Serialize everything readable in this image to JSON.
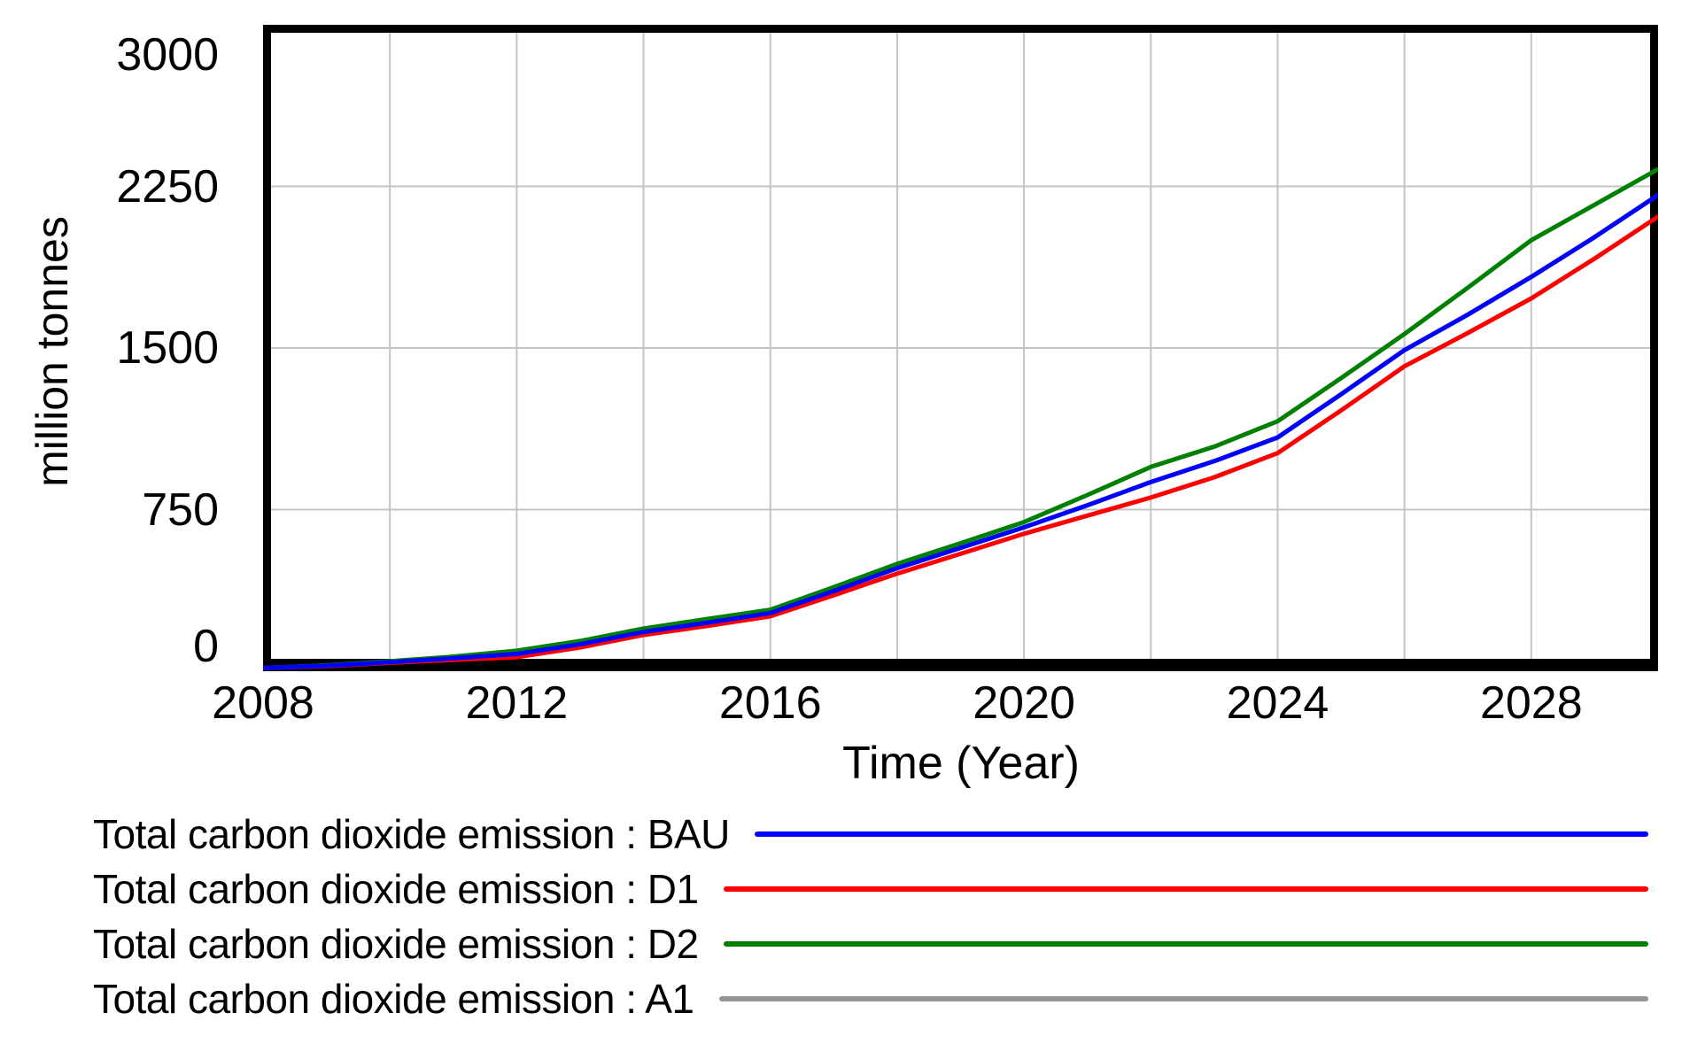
{
  "chart_data": {
    "type": "line",
    "title": "",
    "xlabel": "Time (Year)",
    "ylabel": "million tonnes",
    "xlim": [
      2008,
      2030
    ],
    "ylim": [
      0,
      3000
    ],
    "x_ticks": [
      2008,
      2012,
      2016,
      2020,
      2024,
      2028
    ],
    "y_ticks": [
      0,
      750,
      1500,
      2250,
      3000
    ],
    "x_gridlines": [
      2010,
      2012,
      2014,
      2016,
      2018,
      2020,
      2022,
      2024,
      2026,
      2028
    ],
    "y_gridlines": [
      750,
      1500,
      2250
    ],
    "grid": true,
    "legend_position": "bottom-left",
    "gridline_color": "#c4c4c4",
    "axis_color": "#000000",
    "x": [
      2008,
      2009,
      2010,
      2011,
      2012,
      2013,
      2014,
      2015,
      2016,
      2017,
      2018,
      2019,
      2020,
      2021,
      2022,
      2023,
      2024,
      2025,
      2026,
      2027,
      2028,
      2029,
      2030
    ],
    "series": [
      {
        "name": "Total carbon dioxide emission : BAU",
        "run": "BAU",
        "color": "#0000ff",
        "values": [
          15,
          25,
          42,
          60,
          80,
          125,
          182,
          225,
          270,
          372,
          478,
          572,
          668,
          770,
          878,
          975,
          1085,
          1285,
          1490,
          1655,
          1830,
          2015,
          2210
        ]
      },
      {
        "name": "Total carbon dioxide emission : D1",
        "run": "D1",
        "color": "#ff0000",
        "values": [
          15,
          23,
          39,
          52,
          65,
          110,
          168,
          210,
          255,
          352,
          453,
          545,
          638,
          722,
          806,
          900,
          1012,
          1210,
          1415,
          1570,
          1730,
          1915,
          2110
        ]
      },
      {
        "name": "Total carbon dioxide emission : D2",
        "run": "D2",
        "color": "#008000",
        "values": [
          15,
          27,
          46,
          68,
          95,
          140,
          198,
          242,
          285,
          390,
          498,
          594,
          692,
          818,
          948,
          1042,
          1160,
          1360,
          1565,
          1780,
          2000,
          2165,
          2330
        ]
      },
      {
        "name": "Total carbon dioxide emission : A1",
        "run": "A1",
        "color": "#969696",
        "values": [
          15,
          25,
          42,
          60,
          80,
          125,
          182,
          225,
          270,
          372,
          478,
          572,
          668,
          770,
          878,
          975,
          1085,
          1285,
          1490,
          1655,
          1830,
          2015,
          2210
        ],
        "note": "line coincides with BAU and is hidden beneath it in the plot"
      }
    ],
    "plot_draw_order": [
      3,
      2,
      1,
      0
    ]
  }
}
